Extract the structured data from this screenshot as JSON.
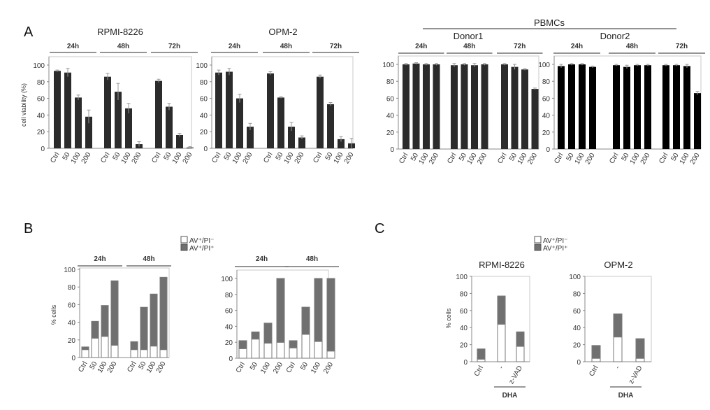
{
  "panels": {
    "a": "A",
    "b": "B",
    "c": "C"
  },
  "pbmc_label": "PBMCs",
  "chart_data": [
    {
      "type": "bar",
      "panel": "A",
      "title": "RPMI-8226",
      "ylabel": "cell viability (%)",
      "ylim": [
        0,
        100
      ],
      "yticks": [
        0,
        20,
        40,
        60,
        80,
        100
      ],
      "bar_color": "#2b2b2b",
      "groups": [
        {
          "label": "24h",
          "categories": [
            "Ctrl",
            "50",
            "100",
            "200"
          ],
          "values": [
            93,
            91,
            61,
            38
          ],
          "errors": [
            1,
            5,
            3,
            8
          ]
        },
        {
          "label": "48h",
          "categories": [
            "Ctrl",
            "50",
            "100",
            "200"
          ],
          "values": [
            86,
            68,
            48,
            5
          ],
          "errors": [
            4,
            10,
            6,
            3
          ]
        },
        {
          "label": "72h",
          "categories": [
            "Ctrl",
            "50",
            "100",
            "200"
          ],
          "values": [
            81,
            50,
            16,
            1
          ],
          "errors": [
            2,
            4,
            2,
            1
          ]
        }
      ]
    },
    {
      "type": "bar",
      "panel": "A",
      "title": "OPM-2",
      "ylabel": "",
      "ylim": [
        0,
        100
      ],
      "yticks": [
        0,
        20,
        40,
        60,
        80,
        100
      ],
      "bar_color": "#2b2b2b",
      "groups": [
        {
          "label": "24h",
          "categories": [
            "Ctrl",
            "50",
            "100",
            "200"
          ],
          "values": [
            91,
            92,
            60,
            26
          ],
          "errors": [
            3,
            4,
            5,
            4
          ]
        },
        {
          "label": "48h",
          "categories": [
            "Ctrl",
            "50",
            "100",
            "200"
          ],
          "values": [
            90,
            61,
            26,
            13
          ],
          "errors": [
            2,
            1,
            5,
            2
          ]
        },
        {
          "label": "72h",
          "categories": [
            "Ctrl",
            "50",
            "100",
            "200"
          ],
          "values": [
            86,
            53,
            11,
            6
          ],
          "errors": [
            2,
            2,
            3,
            6
          ]
        }
      ]
    },
    {
      "type": "bar",
      "panel": "A",
      "group_title": "PBMCs",
      "title": "Donor1",
      "ylabel": "",
      "ylim": [
        0,
        100
      ],
      "yticks": [
        0,
        20,
        40,
        60,
        80,
        100
      ],
      "bar_color": "#2b2b2b",
      "groups": [
        {
          "label": "24h",
          "categories": [
            "Ctrl",
            "50",
            "100",
            "200"
          ],
          "values": [
            100,
            101,
            100,
            100
          ],
          "errors": [
            1,
            1,
            1,
            1
          ]
        },
        {
          "label": "48h",
          "categories": [
            "Ctrl",
            "50",
            "100",
            "200"
          ],
          "values": [
            99,
            100,
            99,
            100
          ],
          "errors": [
            2,
            1,
            2,
            1
          ]
        },
        {
          "label": "72h",
          "categories": [
            "Ctrl",
            "50",
            "100",
            "200"
          ],
          "values": [
            100,
            97,
            94,
            71
          ],
          "errors": [
            1,
            3,
            1,
            1
          ]
        }
      ]
    },
    {
      "type": "bar",
      "panel": "A",
      "group_title": "PBMCs",
      "title": "Donor2",
      "ylabel": "",
      "ylim": [
        0,
        100
      ],
      "yticks": [
        0,
        20,
        40,
        60,
        80,
        100
      ],
      "bar_color": "#000000",
      "groups": [
        {
          "label": "24h",
          "categories": [
            "Ctrl",
            "50",
            "100",
            "200"
          ],
          "values": [
            98,
            100,
            100,
            97
          ],
          "errors": [
            2,
            1,
            1,
            1
          ]
        },
        {
          "label": "48h",
          "categories": [
            "Ctrl",
            "50",
            "100",
            "200"
          ],
          "values": [
            99,
            97,
            99,
            99
          ],
          "errors": [
            1,
            2,
            1,
            1
          ]
        },
        {
          "label": "72h",
          "categories": [
            "Ctrl",
            "50",
            "100",
            "200"
          ],
          "values": [
            99,
            99,
            98,
            66
          ],
          "errors": [
            1,
            1,
            2,
            2
          ]
        }
      ]
    },
    {
      "type": "stacked-bar",
      "panel": "B",
      "title": "",
      "ylabel": "% cells",
      "ylim": [
        0,
        100
      ],
      "yticks": [
        0,
        20,
        40,
        60,
        80,
        100
      ],
      "series_names": [
        "AV⁺/PI⁻",
        "AV⁺/PI⁺"
      ],
      "series_colors": [
        "#ffffff",
        "#707070"
      ],
      "groups": [
        {
          "label": "24h",
          "categories": [
            "Ctrl",
            "50",
            "100",
            "200"
          ],
          "series": [
            [
              9,
              22,
              24,
              14
            ],
            [
              3,
              19,
              35,
              73
            ]
          ]
        },
        {
          "label": "48h",
          "categories": [
            "Ctrl",
            "50",
            "100",
            "200"
          ],
          "series": [
            [
              9,
              9,
              13,
              9
            ],
            [
              9,
              48,
              59,
              82
            ]
          ]
        }
      ]
    },
    {
      "type": "stacked-bar",
      "panel": "B",
      "title": "",
      "ylabel": "",
      "ylim": [
        0,
        100
      ],
      "yticks": [
        0,
        20,
        40,
        60,
        80,
        100
      ],
      "series_names": [
        "AV⁺/PI⁻",
        "AV⁺/PI⁺"
      ],
      "series_colors": [
        "#ffffff",
        "#707070"
      ],
      "groups": [
        {
          "label": "24h",
          "categories": [
            "Ctrl",
            "50",
            "100",
            "200"
          ],
          "series": [
            [
              12,
              24,
              19,
              20
            ],
            [
              10,
              9,
              25,
              80
            ]
          ]
        },
        {
          "label": "48h",
          "categories": [
            "Ctrl",
            "50",
            "100",
            "200"
          ],
          "series": [
            [
              13,
              30,
              21,
              9
            ],
            [
              9,
              34,
              79,
              91
            ]
          ]
        }
      ]
    },
    {
      "type": "stacked-bar",
      "panel": "C",
      "title": "RPMI-8226",
      "ylabel": "% cells",
      "ylim": [
        0,
        100
      ],
      "yticks": [
        0,
        20,
        40,
        60,
        80,
        100
      ],
      "series_names": [
        "AV⁺/PI⁻",
        "AV⁺/PI⁺"
      ],
      "series_colors": [
        "#ffffff",
        "#707070"
      ],
      "bracket_label": "DHA",
      "groups": [
        {
          "label": "",
          "categories": [
            "Ctrl",
            "-",
            "z-VAD"
          ],
          "series": [
            [
              3,
              44,
              18
            ],
            [
              12,
              33,
              17
            ]
          ]
        }
      ]
    },
    {
      "type": "stacked-bar",
      "panel": "C",
      "title": "OPM-2",
      "ylabel": "",
      "ylim": [
        0,
        100
      ],
      "yticks": [
        0,
        20,
        40,
        60,
        80,
        100
      ],
      "series_names": [
        "AV⁺/PI⁻",
        "AV⁺/PI⁺"
      ],
      "series_colors": [
        "#ffffff",
        "#707070"
      ],
      "bracket_label": "DHA",
      "groups": [
        {
          "label": "",
          "categories": [
            "Ctrl",
            "-",
            "z-VAD"
          ],
          "series": [
            [
              4,
              29,
              4
            ],
            [
              15,
              27,
              23
            ]
          ]
        }
      ]
    }
  ]
}
